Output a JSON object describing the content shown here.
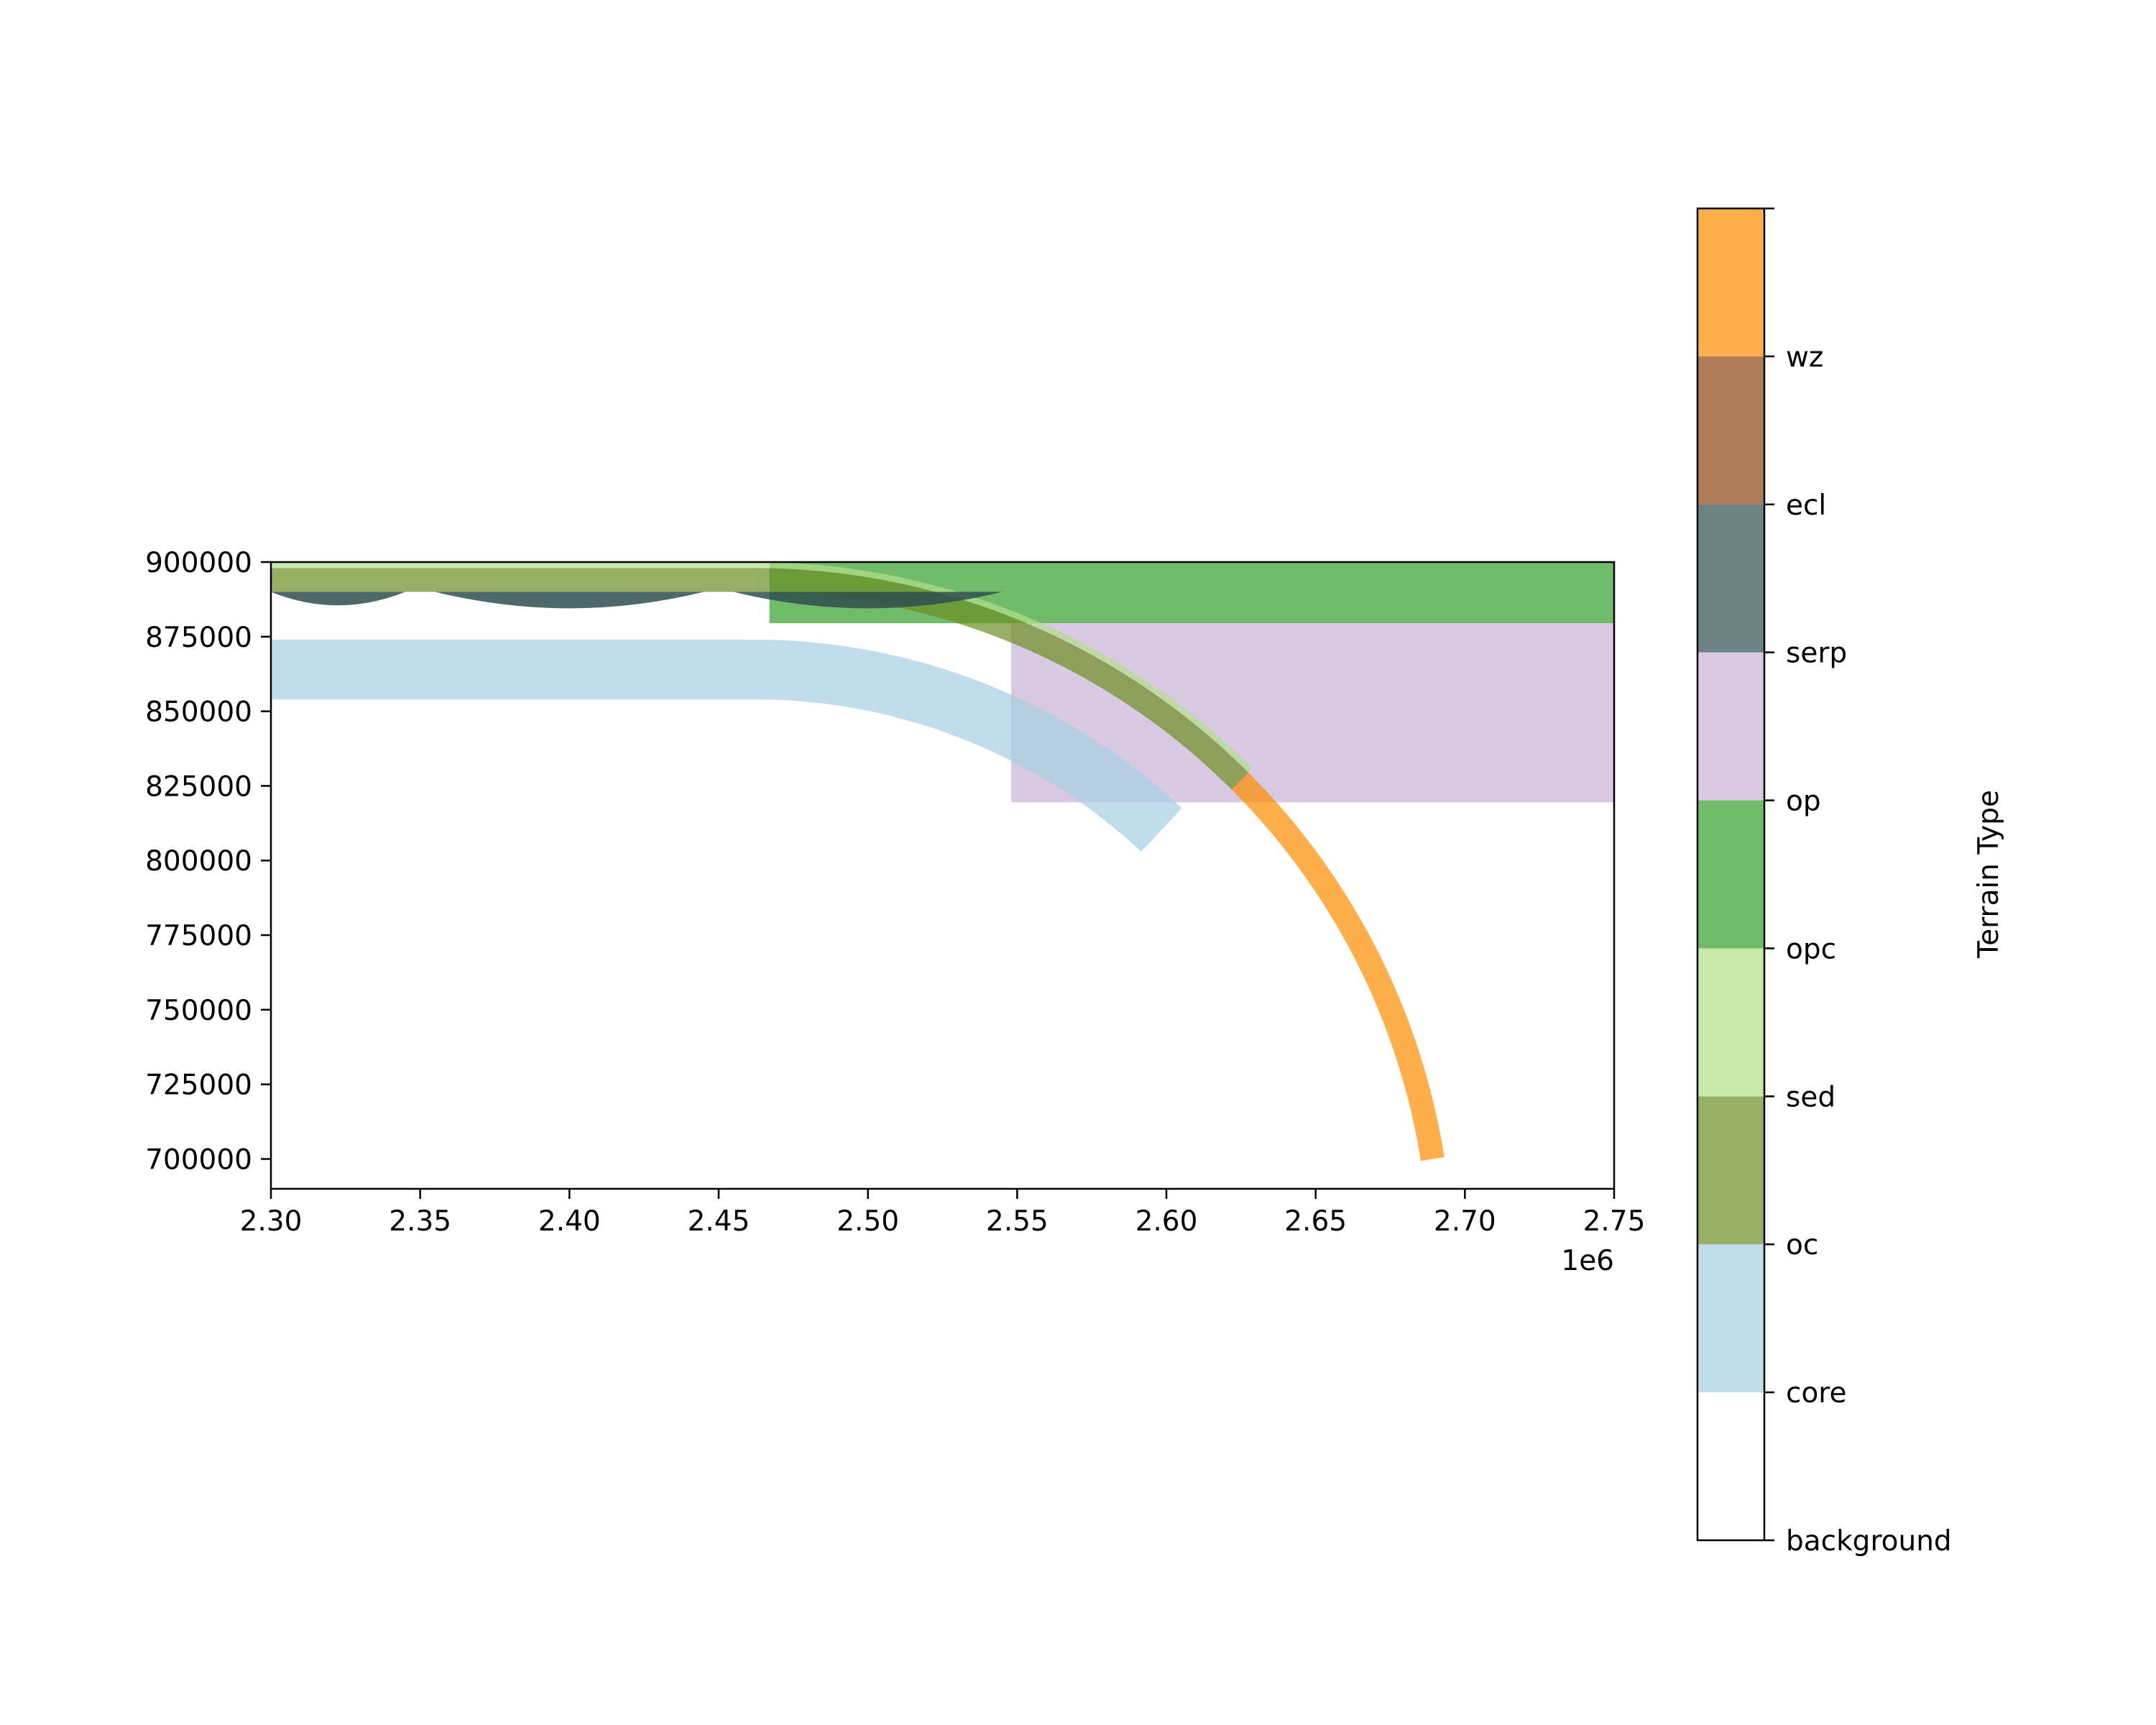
{
  "chart_data": {
    "type": "heatmap",
    "title": "",
    "xlabel": "",
    "ylabel": "",
    "xlim": [
      2300000,
      2750000
    ],
    "ylim": [
      690000,
      900000
    ],
    "x_offset_label": "1e6",
    "x_ticks": [
      2.3,
      2.35,
      2.4,
      2.45,
      2.5,
      2.55,
      2.6,
      2.65,
      2.7,
      2.75
    ],
    "x_tick_labels": [
      "2.30",
      "2.35",
      "2.40",
      "2.45",
      "2.50",
      "2.55",
      "2.60",
      "2.65",
      "2.70",
      "2.75"
    ],
    "y_ticks": [
      700000,
      725000,
      750000,
      775000,
      800000,
      825000,
      850000,
      875000,
      900000
    ],
    "y_tick_labels": [
      "700000",
      "725000",
      "750000",
      "775000",
      "800000",
      "825000",
      "850000",
      "875000",
      "900000"
    ],
    "colorbar": {
      "label": "Terrain Type",
      "categories": [
        {
          "name": "background",
          "color": "#ffffff"
        },
        {
          "name": "core",
          "color": "#a6cee3"
        },
        {
          "name": "oc",
          "color": "#6b8e23"
        },
        {
          "name": "sed",
          "color": "#b2df8a"
        },
        {
          "name": "opc",
          "color": "#33a02c"
        },
        {
          "name": "op",
          "color": "#cab2d6"
        },
        {
          "name": "serp",
          "color": "#2f4f4f"
        },
        {
          "name": "ecl",
          "color": "#8b4513"
        },
        {
          "name": "wz",
          "color": "#ff8c00"
        }
      ],
      "alpha": 0.7
    },
    "regions": [
      {
        "type": "band",
        "terrain": "opc",
        "x": [
          2467000,
          2750000
        ],
        "y": [
          879500,
          900000
        ]
      },
      {
        "type": "band",
        "terrain": "op",
        "x": [
          2548000,
          2750000
        ],
        "y": [
          819500,
          879500
        ]
      },
      {
        "type": "straight-slab",
        "terrain": "core",
        "x": [
          2300000,
          2462000
        ],
        "y": [
          854000,
          874000
        ]
      },
      {
        "type": "arc",
        "terrain": "core",
        "center": [
          2462000,
          664000
        ],
        "radius_outer": 210000,
        "radius_inner": 190000,
        "angle_end_deg": 43
      },
      {
        "type": "straight-slab",
        "terrain": "oc",
        "x": [
          2300000,
          2462000
        ],
        "y": [
          890000,
          898000
        ]
      },
      {
        "type": "straight-slab",
        "terrain": "sed",
        "x": [
          2300000,
          2462000
        ],
        "y": [
          898000,
          900000
        ]
      },
      {
        "type": "arc",
        "terrain": "oc",
        "center": [
          2462000,
          664000
        ],
        "radius_outer": 234000,
        "radius_inner": 226000,
        "angle_end_deg": 45
      },
      {
        "type": "arc",
        "terrain": "sed",
        "center": [
          2462000,
          664000
        ],
        "radius_outer": 236000,
        "radius_inner": 234000,
        "angle_end_deg": 45
      },
      {
        "type": "arc",
        "terrain": "wz",
        "center": [
          2462000,
          664000
        ],
        "radius_outer": 234000,
        "radius_inner": 226000,
        "angle_start_deg": 45,
        "angle_end_deg": 81
      },
      {
        "type": "serp-lens",
        "terrain": "serp",
        "x": [
          2300000,
          2345000
        ],
        "y_top": 890000,
        "y_bottom": 885500
      },
      {
        "type": "serp-lens",
        "terrain": "serp",
        "x": [
          2355000,
          2445000
        ],
        "y_top": 890000,
        "y_bottom": 884500
      },
      {
        "type": "serp-lens",
        "terrain": "serp",
        "x": [
          2455000,
          2545000
        ],
        "y_top": 890000,
        "y_bottom": 884500
      }
    ]
  }
}
